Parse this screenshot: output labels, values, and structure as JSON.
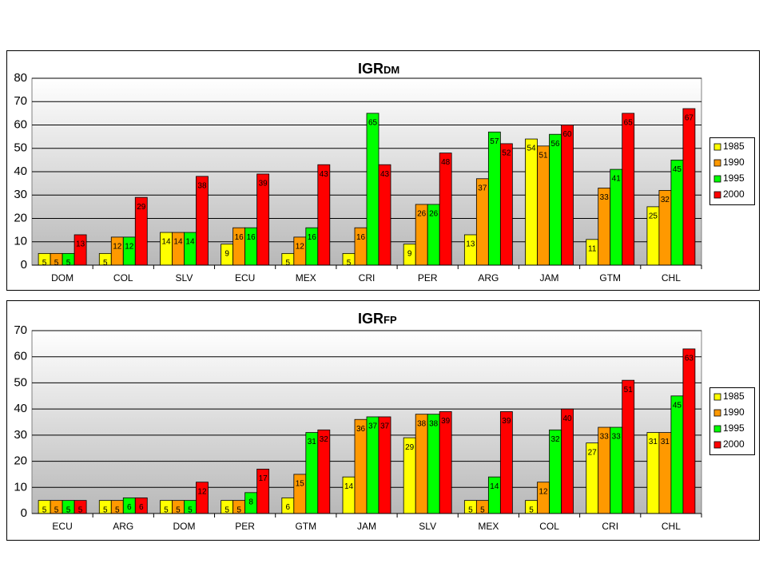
{
  "chart_data": [
    {
      "type": "bar",
      "title": "IGR",
      "title_subscript": "DM",
      "categories": [
        "DOM",
        "COL",
        "SLV",
        "ECU",
        "MEX",
        "CRI",
        "PER",
        "ARG",
        "JAM",
        "GTM",
        "CHL"
      ],
      "series": [
        {
          "name": "1985",
          "color": "#ffff00",
          "values": [
            5,
            5,
            14,
            9,
            5,
            5,
            9,
            13,
            54,
            11,
            25
          ]
        },
        {
          "name": "1990",
          "color": "#ff9900",
          "values": [
            5,
            12,
            14,
            16,
            12,
            16,
            26,
            37,
            51,
            33,
            32
          ]
        },
        {
          "name": "1995",
          "color": "#00ff00",
          "values": [
            5,
            12,
            14,
            16,
            16,
            65,
            26,
            57,
            56,
            41,
            45
          ]
        },
        {
          "name": "2000",
          "color": "#ff0000",
          "values": [
            13,
            29,
            38,
            39,
            43,
            43,
            48,
            52,
            60,
            65,
            67
          ]
        }
      ],
      "ylim": [
        0,
        80
      ],
      "yticks": [
        0,
        10,
        20,
        30,
        40,
        50,
        60,
        70,
        80
      ],
      "grid": true,
      "legend": "right"
    },
    {
      "type": "bar",
      "title": "IGR",
      "title_subscript": "FP",
      "categories": [
        "ECU",
        "ARG",
        "DOM",
        "PER",
        "GTM",
        "JAM",
        "SLV",
        "MEX",
        "COL",
        "CRI",
        "CHL"
      ],
      "series": [
        {
          "name": "1985",
          "color": "#ffff00",
          "values": [
            5,
            5,
            5,
            5,
            6,
            14,
            29,
            5,
            5,
            27,
            31
          ]
        },
        {
          "name": "1990",
          "color": "#ff9900",
          "values": [
            5,
            5,
            5,
            5,
            15,
            36,
            38,
            5,
            12,
            33,
            31
          ]
        },
        {
          "name": "1995",
          "color": "#00ff00",
          "values": [
            5,
            6,
            5,
            8,
            31,
            37,
            38,
            14,
            32,
            33,
            45
          ]
        },
        {
          "name": "2000",
          "color": "#ff0000",
          "values": [
            5,
            6,
            12,
            17,
            32,
            37,
            39,
            39,
            40,
            51,
            63
          ]
        }
      ],
      "ylim": [
        0,
        70
      ],
      "yticks": [
        0,
        10,
        20,
        30,
        40,
        50,
        60,
        70
      ],
      "grid": true,
      "legend": "right"
    }
  ]
}
